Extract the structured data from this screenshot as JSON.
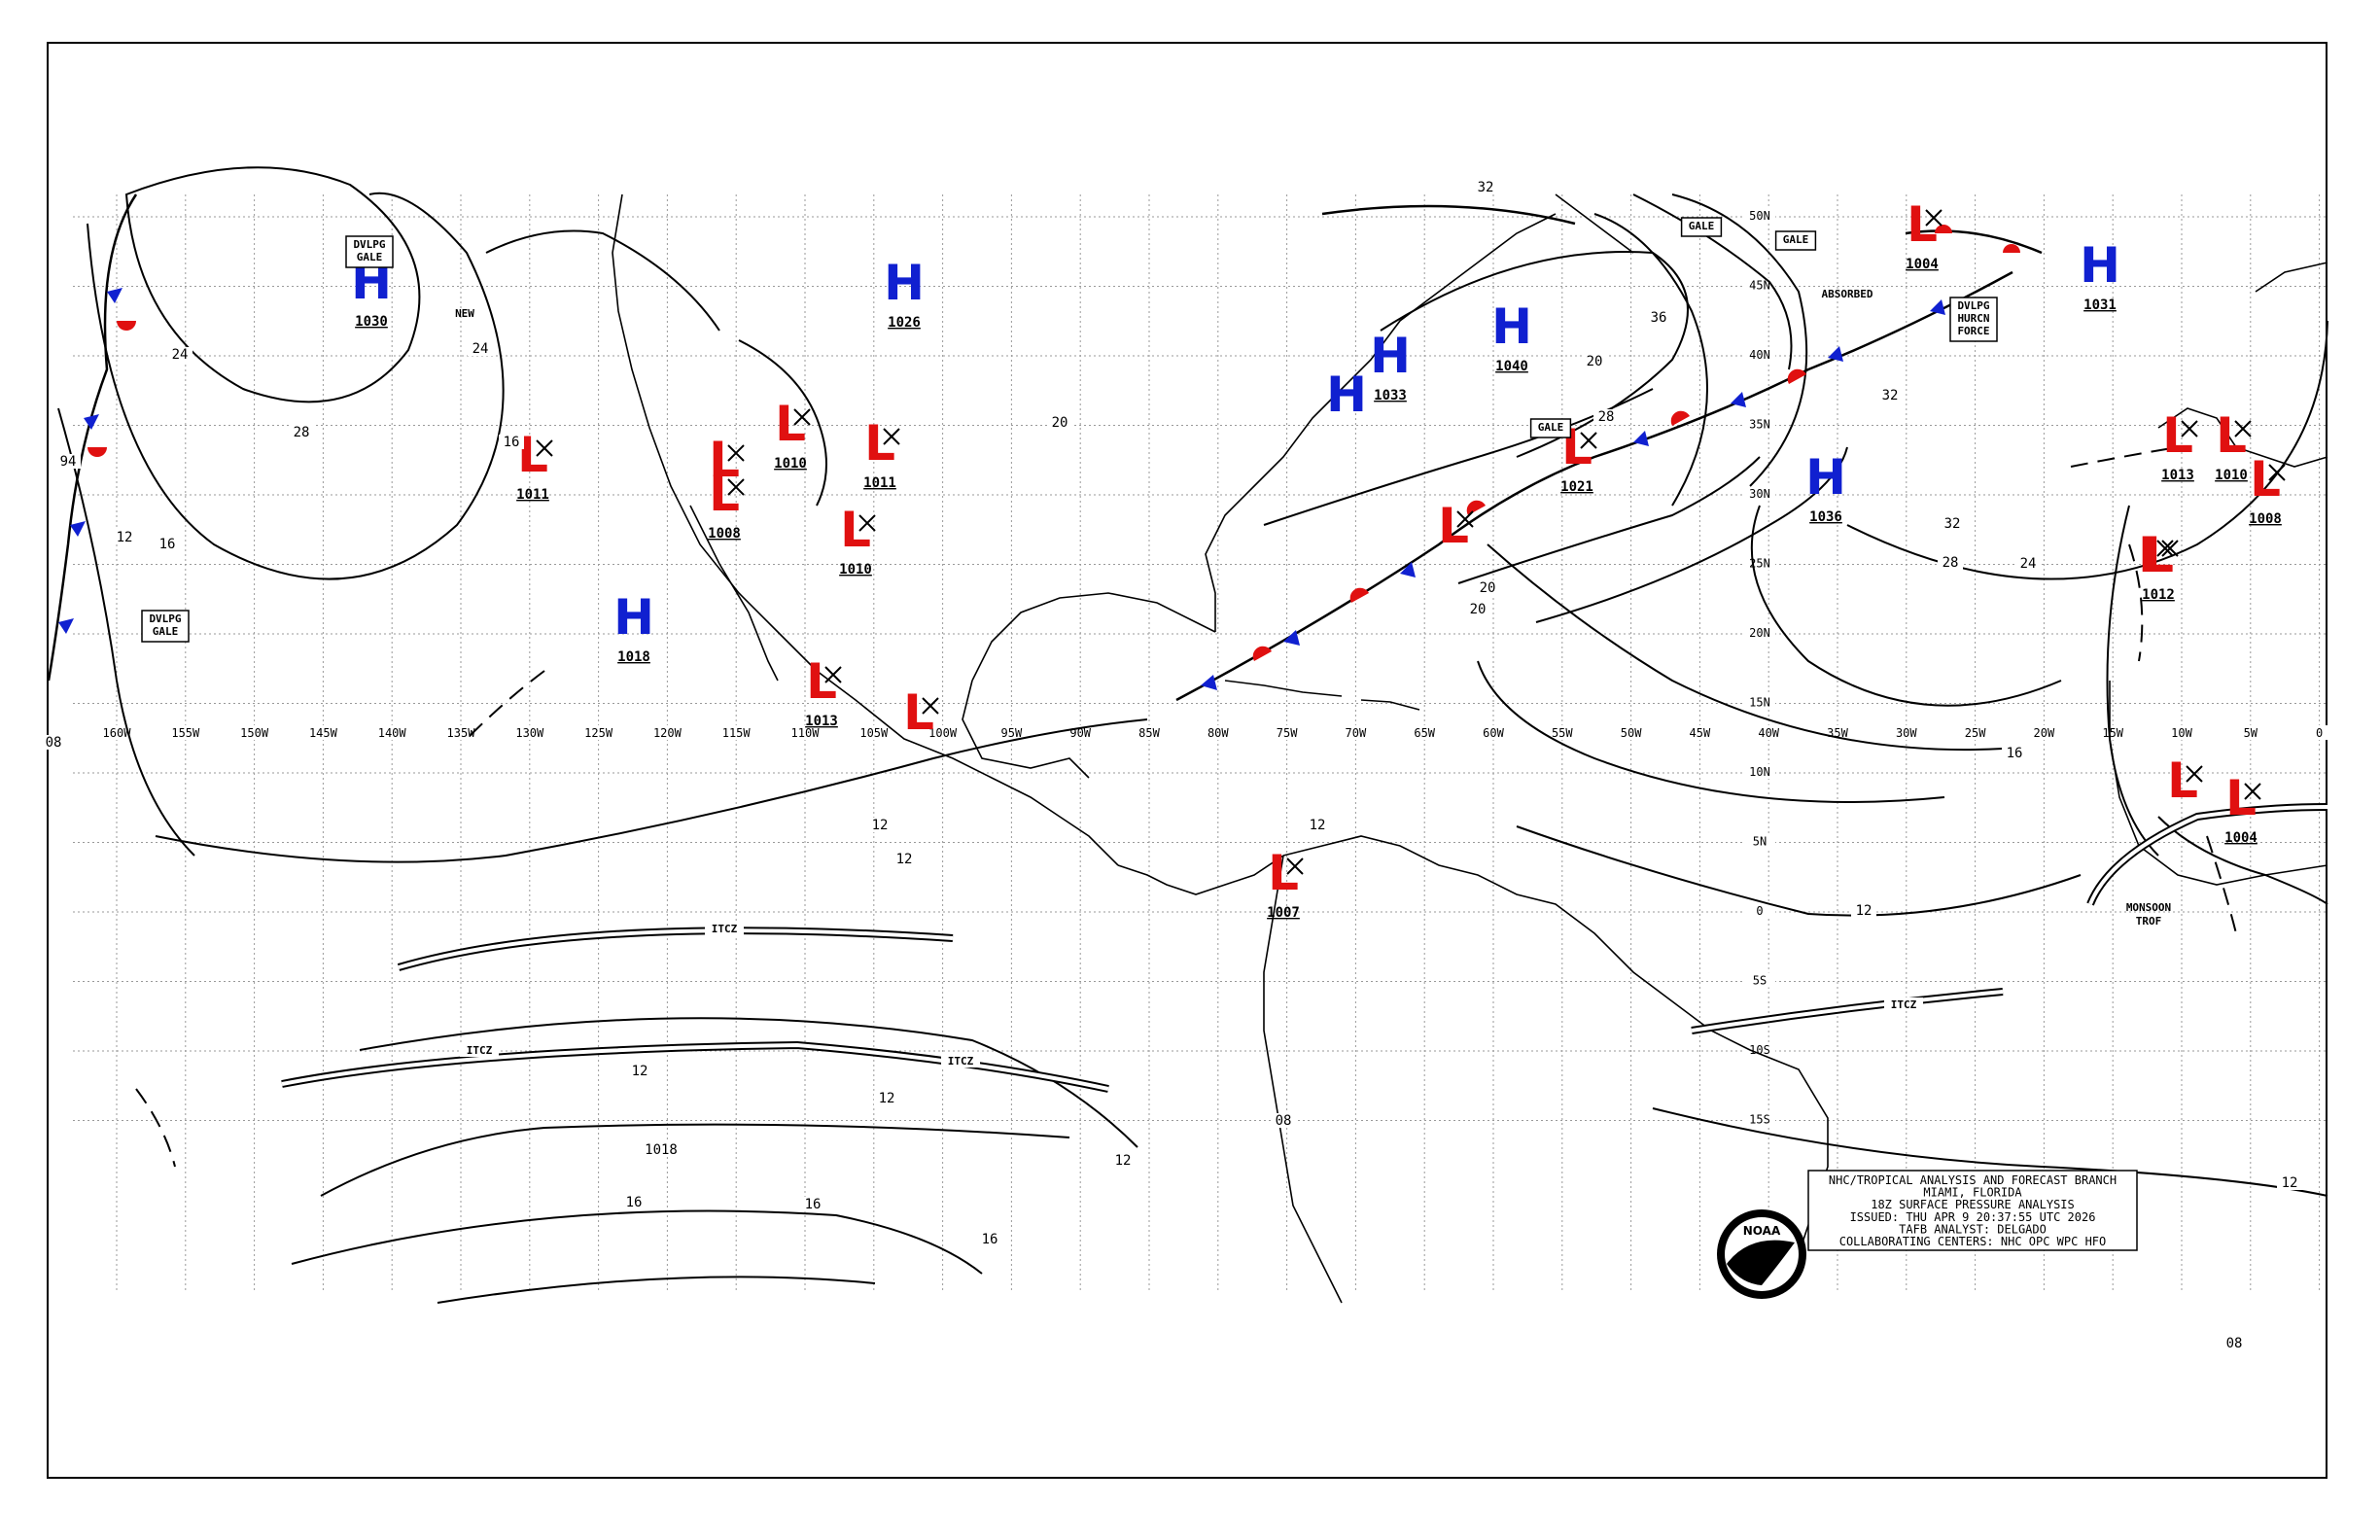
{
  "colors": {
    "low": "#e01010",
    "high": "#1020d0",
    "warm_front": "#e01010",
    "cold_front": "#1020d0",
    "line": "#000000"
  },
  "lon_labels": [
    "160W",
    "155W",
    "150W",
    "145W",
    "140W",
    "135W",
    "130W",
    "125W",
    "120W",
    "115W",
    "110W",
    "105W",
    "100W",
    "95W",
    "90W",
    "85W",
    "80W",
    "75W",
    "70W",
    "65W",
    "60W",
    "55W",
    "50W",
    "45W",
    "40W",
    "35W",
    "30W",
    "25W",
    "20W",
    "15W",
    "10W",
    "5W",
    "0"
  ],
  "lat_labels": [
    "50N",
    "45N",
    "40N",
    "35N",
    "30N",
    "25N",
    "20N",
    "15N",
    "10N",
    "5N",
    "0",
    "5S",
    "10S",
    "15S"
  ],
  "pressure_centers": [
    {
      "type": "H",
      "value": "1030"
    },
    {
      "type": "L",
      "value": "1011"
    },
    {
      "type": "H",
      "value": "1018"
    },
    {
      "type": "L",
      "value": ""
    },
    {
      "type": "L",
      "value": "1008"
    },
    {
      "type": "L",
      "value": "1010"
    },
    {
      "type": "L",
      "value": "1011"
    },
    {
      "type": "L",
      "value": "1010"
    },
    {
      "type": "H",
      "value": "1026"
    },
    {
      "type": "L",
      "value": "1013"
    },
    {
      "type": "L",
      "value": ""
    },
    {
      "type": "H",
      "value": "1033"
    },
    {
      "type": "H",
      "value": "1040"
    },
    {
      "type": "H",
      "value": ""
    },
    {
      "type": "L",
      "value": ""
    },
    {
      "type": "L",
      "value": "1021"
    },
    {
      "type": "L",
      "value": ""
    },
    {
      "type": "L",
      "value": "1004"
    },
    {
      "type": "H",
      "value": "1031"
    },
    {
      "type": "H",
      "value": "1036"
    },
    {
      "type": "L",
      "value": "1013"
    },
    {
      "type": "L",
      "value": "1010"
    },
    {
      "type": "L",
      "value": "1008"
    },
    {
      "type": "L",
      "value": ""
    },
    {
      "type": "L",
      "value": "1004"
    },
    {
      "type": "L",
      "value": "1007"
    },
    {
      "type": "L",
      "value": "1012"
    }
  ],
  "boxed_labels": [
    {
      "lines": [
        "DVLPG",
        "GALE"
      ]
    },
    {
      "lines": [
        "DVLPG",
        "GALE"
      ]
    },
    {
      "lines": [
        "GALE"
      ]
    },
    {
      "lines": [
        "GALE"
      ]
    },
    {
      "lines": [
        "GALE"
      ]
    },
    {
      "lines": [
        "DVLPG",
        "HURCN",
        "FORCE"
      ]
    }
  ],
  "plain_labels": [
    "NEW",
    "ABSORBED",
    "MONSOON",
    "TROF"
  ],
  "feature_labels": [
    "ITCZ",
    "ITCZ",
    "ITCZ",
    "ITCZ"
  ],
  "isobar_labels": [
    "24",
    "28",
    "24",
    "16",
    "12",
    "16",
    "12",
    "12",
    "12",
    "20",
    "20",
    "36",
    "20",
    "28",
    "32",
    "28",
    "24",
    "32",
    "12",
    "16",
    "12",
    "12",
    "16",
    "16",
    "16",
    "12",
    "08",
    "08",
    "12",
    "1018",
    "94",
    "08",
    "20",
    "32"
  ],
  "title_block": {
    "lines": [
      "NHC/TROPICAL ANALYSIS AND FORECAST BRANCH",
      "MIAMI, FLORIDA",
      "18Z SURFACE PRESSURE ANALYSIS",
      "ISSUED: THU APR 9 20:37:55 UTC 2026",
      "TAFB ANALYST: DELGADO",
      "COLLABORATING CENTERS: NHC OPC WPC HFO"
    ]
  },
  "logo_text": "NOAA"
}
